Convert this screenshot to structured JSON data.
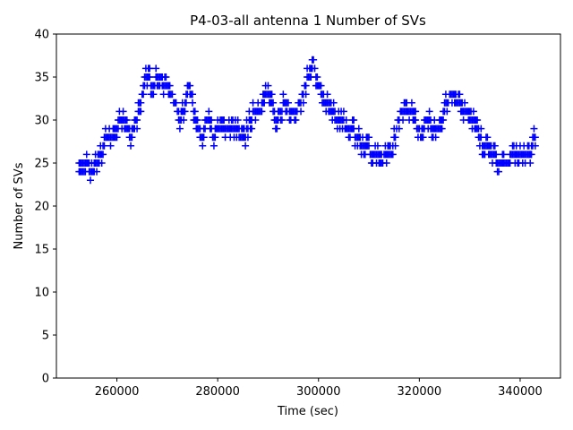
{
  "chart_data": {
    "type": "scatter",
    "title": "P4-03-all antenna 1 Number of SVs",
    "xlabel": "Time (sec)",
    "ylabel": "Number of SVs",
    "xlim": [
      248000,
      348000
    ],
    "ylim": [
      0,
      40
    ],
    "xticks": [
      260000,
      280000,
      300000,
      320000,
      340000
    ],
    "xtick_labels": [
      "260000",
      "280000",
      "300000",
      "320000",
      "340000"
    ],
    "yticks": [
      0,
      5,
      10,
      15,
      20,
      25,
      30,
      35,
      40
    ],
    "ytick_labels": [
      "0",
      "5",
      "10",
      "15",
      "20",
      "25",
      "30",
      "35",
      "40"
    ],
    "marker": "+",
    "color": "#0000ff",
    "series": [
      {
        "name": "antenna 1",
        "profile": [
          [
            252500,
            25
          ],
          [
            253000,
            24
          ],
          [
            254000,
            25
          ],
          [
            255000,
            24
          ],
          [
            256000,
            25
          ],
          [
            257000,
            26
          ],
          [
            258000,
            28
          ],
          [
            259000,
            28
          ],
          [
            260000,
            29
          ],
          [
            261000,
            30
          ],
          [
            262000,
            29
          ],
          [
            263000,
            28
          ],
          [
            264000,
            30
          ],
          [
            265000,
            33
          ],
          [
            266000,
            35
          ],
          [
            267000,
            34
          ],
          [
            268500,
            35
          ],
          [
            269500,
            34
          ],
          [
            270500,
            33
          ],
          [
            271500,
            32
          ],
          [
            272500,
            30
          ],
          [
            273500,
            31
          ],
          [
            274000,
            34
          ],
          [
            275000,
            32
          ],
          [
            276000,
            29
          ],
          [
            277000,
            28
          ],
          [
            278000,
            30
          ],
          [
            279000,
            28
          ],
          [
            280000,
            29
          ],
          [
            282000,
            29
          ],
          [
            283500,
            29
          ],
          [
            284500,
            28
          ],
          [
            285500,
            28
          ],
          [
            286500,
            30
          ],
          [
            287500,
            31
          ],
          [
            288500,
            31
          ],
          [
            289500,
            33
          ],
          [
            290500,
            32
          ],
          [
            291500,
            30
          ],
          [
            292500,
            31
          ],
          [
            293500,
            32
          ],
          [
            294500,
            31
          ],
          [
            295500,
            31
          ],
          [
            296500,
            32
          ],
          [
            297500,
            34
          ],
          [
            298500,
            36
          ],
          [
            299000,
            37
          ],
          [
            299500,
            35
          ],
          [
            300500,
            33
          ],
          [
            301500,
            32
          ],
          [
            302500,
            31
          ],
          [
            303500,
            30
          ],
          [
            304500,
            30
          ],
          [
            305500,
            29
          ],
          [
            306500,
            29
          ],
          [
            307500,
            28
          ],
          [
            308500,
            27
          ],
          [
            309500,
            27
          ],
          [
            310500,
            26
          ],
          [
            311500,
            26
          ],
          [
            312500,
            25
          ],
          [
            313500,
            26
          ],
          [
            314500,
            26
          ],
          [
            315500,
            29
          ],
          [
            316500,
            31
          ],
          [
            317500,
            31
          ],
          [
            318500,
            31
          ],
          [
            319500,
            29
          ],
          [
            320500,
            28
          ],
          [
            321500,
            30
          ],
          [
            322500,
            29
          ],
          [
            323500,
            29
          ],
          [
            324500,
            30
          ],
          [
            325500,
            32
          ],
          [
            326500,
            33
          ],
          [
            327500,
            32
          ],
          [
            328500,
            31
          ],
          [
            329500,
            31
          ],
          [
            330500,
            30
          ],
          [
            331500,
            29
          ],
          [
            332500,
            27
          ],
          [
            333500,
            27
          ],
          [
            334500,
            26
          ],
          [
            335500,
            25
          ],
          [
            336500,
            25
          ],
          [
            337500,
            25
          ],
          [
            338500,
            26
          ],
          [
            339500,
            26
          ],
          [
            340500,
            26
          ],
          [
            341500,
            26
          ],
          [
            342000,
            25
          ],
          [
            342500,
            27
          ],
          [
            343000,
            28
          ]
        ]
      }
    ]
  }
}
